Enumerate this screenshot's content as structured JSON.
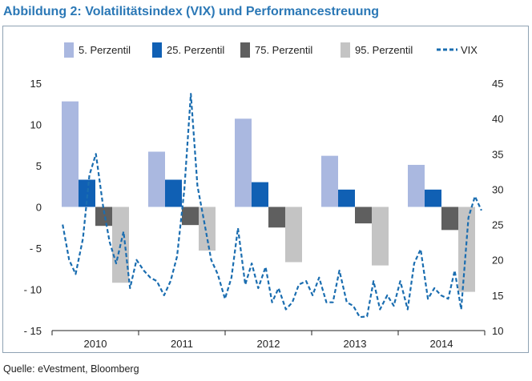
{
  "title": "Abbildung 2: Volatilitätsindex (VIX) und Performancestreuung",
  "source": "Quelle: eVestment, Bloomberg",
  "chart_data": {
    "type": "bar",
    "categories": [
      "2010",
      "2011",
      "2012",
      "2013",
      "2014"
    ],
    "series": [
      {
        "name": "5. Perzentil",
        "color": "#aab8e0",
        "values": [
          12.8,
          6.7,
          10.7,
          6.2,
          5.1
        ]
      },
      {
        "name": "25. Perzentil",
        "color": "#1060b4",
        "values": [
          3.3,
          3.3,
          3.0,
          2.1,
          2.1
        ]
      },
      {
        "name": "75. Perzentil",
        "color": "#5f5f5f",
        "values": [
          -2.3,
          -2.2,
          -2.5,
          -2.0,
          -2.8
        ]
      },
      {
        "name": "95. Perzentil",
        "color": "#c4c4c4",
        "values": [
          -9.2,
          -5.3,
          -6.7,
          -7.1,
          -10.3
        ]
      }
    ],
    "line": {
      "name": "VIX",
      "color": "#1a6db0",
      "x": [
        2009.63,
        2009.71,
        2009.79,
        2009.88,
        2009.96,
        2010.04,
        2010.13,
        2010.21,
        2010.29,
        2010.38,
        2010.46,
        2010.54,
        2010.63,
        2010.71,
        2010.79,
        2010.88,
        2010.96,
        2011.04,
        2011.13,
        2011.21,
        2011.29,
        2011.38,
        2011.46,
        2011.54,
        2011.63,
        2011.71,
        2011.79,
        2011.88,
        2011.96,
        2012.04,
        2012.13,
        2012.21,
        2012.29,
        2012.38,
        2012.46,
        2012.54,
        2012.63,
        2012.71,
        2012.79,
        2012.88,
        2012.96,
        2013.04,
        2013.13,
        2013.21,
        2013.29,
        2013.38,
        2013.46,
        2013.54,
        2013.63,
        2013.71,
        2013.79,
        2013.88,
        2013.96,
        2014.04,
        2014.13,
        2014.21,
        2014.29,
        2014.38,
        2014.46,
        2014.54,
        2014.63,
        2014.71,
        2014.79
      ],
      "values": [
        25.0,
        20.0,
        18.0,
        23.0,
        32.0,
        35.0,
        27.5,
        22.5,
        19.5,
        24.0,
        16.0,
        20.0,
        18.5,
        17.5,
        17.0,
        15.0,
        17.0,
        20.5,
        30.0,
        43.5,
        30.5,
        25.0,
        20.0,
        18.0,
        14.5,
        17.5,
        24.5,
        16.5,
        19.5,
        16.0,
        19.0,
        14.0,
        16.0,
        13.0,
        14.0,
        16.5,
        17.0,
        15.0,
        17.5,
        14.0,
        14.0,
        18.5,
        14.0,
        13.5,
        11.9,
        12.0,
        17.0,
        13.0,
        15.0,
        13.5,
        17.0,
        13.0,
        19.5,
        21.5,
        14.5,
        16.0,
        15.0,
        14.5,
        18.5,
        13.0,
        26.0,
        29.0,
        27.0
      ]
    },
    "y_left": {
      "min": -15,
      "max": 15,
      "ticks": [
        15,
        10,
        5,
        0,
        -5,
        -10,
        -15
      ],
      "tick_labels": [
        "15",
        "10",
        "5",
        "0",
        "- 5",
        "- 10",
        "- 15"
      ]
    },
    "y_right": {
      "min": 10,
      "max": 45,
      "ticks": [
        45,
        40,
        35,
        30,
        25,
        20,
        15,
        10
      ]
    },
    "xlim": [
      2009.5,
      2014.83
    ],
    "legend_position": "top"
  }
}
